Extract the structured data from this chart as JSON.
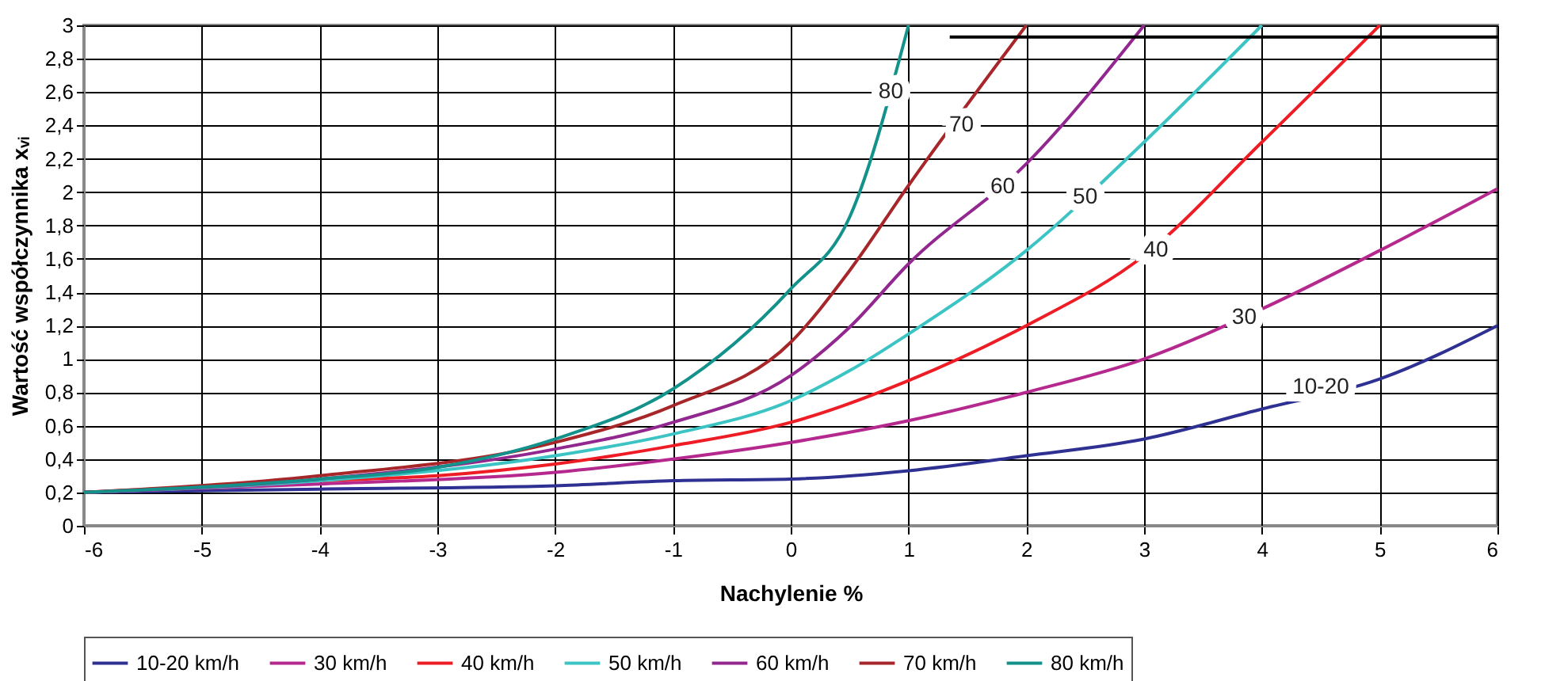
{
  "chart_data": {
    "type": "line",
    "xlabel": "Nachylenie %",
    "ylabel": "Wartość współczynnika xᵥᵢ",
    "xlim": [
      -6,
      6
    ],
    "xticks": [
      -6,
      -5,
      -4,
      -3,
      -2,
      -1,
      0,
      1,
      2,
      3,
      4,
      5,
      6
    ],
    "ylim": [
      0,
      3
    ],
    "yticks": [
      0,
      {
        "value": 0.2,
        "label": "0,2"
      },
      {
        "value": 0.4,
        "label": "0,4"
      },
      {
        "value": 0.6,
        "label": "0,6"
      },
      {
        "value": 0.8,
        "label": "0,8"
      },
      1,
      {
        "value": 1.2,
        "label": "1,2"
      },
      {
        "value": 1.4,
        "label": "1,4"
      },
      {
        "value": 1.6,
        "label": "1,6"
      },
      {
        "value": 1.8,
        "label": "1,8"
      },
      2,
      {
        "value": 2.2,
        "label": "2,2"
      },
      {
        "value": 2.4,
        "label": "2,4"
      },
      {
        "value": 2.6,
        "label": "2,6"
      },
      {
        "value": 2.8,
        "label": "2,8"
      },
      3
    ],
    "grid": true,
    "legend": "bottom",
    "marker": "none",
    "line_style": "solid",
    "series": [
      {
        "name": "10-20 km/h",
        "color": "#2e3192",
        "x": [
          -6,
          -4,
          -2,
          -1,
          0,
          1,
          2,
          3,
          4,
          5,
          6
        ],
        "values": [
          0.2,
          0.22,
          0.24,
          0.27,
          0.28,
          0.33,
          0.42,
          0.52,
          0.7,
          0.88,
          1.2
        ]
      },
      {
        "name": "30 km/h",
        "color": "#b5298f",
        "x": [
          -6,
          -4,
          -2,
          -1,
          0,
          1,
          2,
          3,
          4,
          5,
          6
        ],
        "values": [
          0.2,
          0.25,
          0.32,
          0.4,
          0.5,
          0.63,
          0.8,
          1.0,
          1.3,
          1.65,
          2.02
        ]
      },
      {
        "name": "40 km/h",
        "color": "#ee1c24",
        "x": [
          -6,
          -4,
          -3,
          -2,
          -1,
          0,
          1,
          2,
          3,
          4,
          5
        ],
        "values": [
          0.2,
          0.27,
          0.3,
          0.37,
          0.48,
          0.62,
          0.87,
          1.2,
          1.62,
          2.3,
          3.0
        ]
      },
      {
        "name": "50 km/h",
        "color": "#3cc4c4",
        "x": [
          -6,
          -4,
          -2,
          -1,
          0,
          0.5,
          1,
          2,
          3,
          4
        ],
        "values": [
          0.2,
          0.27,
          0.42,
          0.55,
          0.75,
          0.93,
          1.15,
          1.65,
          2.3,
          3.0
        ]
      },
      {
        "name": "60 km/h",
        "color": "#92278f",
        "x": [
          -6,
          -4,
          -2,
          -1,
          0,
          0.5,
          1,
          2,
          3
        ],
        "values": [
          0.2,
          0.28,
          0.46,
          0.62,
          0.9,
          1.19,
          1.57,
          2.17,
          3.0
        ]
      },
      {
        "name": "70 km/h",
        "color": "#a6262a",
        "x": [
          -6,
          -4,
          -2,
          -1,
          0,
          0.5,
          1,
          2
        ],
        "values": [
          0.2,
          0.3,
          0.5,
          0.72,
          1.1,
          1.53,
          2.04,
          3.0
        ]
      },
      {
        "name": "80 km/h",
        "color": "#12928a",
        "x": [
          -6,
          -4,
          -3,
          -2,
          -1,
          0,
          0.5,
          1
        ],
        "values": [
          0.2,
          0.28,
          0.35,
          0.52,
          0.82,
          1.42,
          1.85,
          3.0
        ]
      },
      {
        "color": "#000000",
        "x": [
          1.35,
          6
        ],
        "values": [
          2.93,
          2.93
        ]
      }
    ],
    "annotations": [
      {
        "text": "80",
        "x": 0.85,
        "y": 2.6
      },
      {
        "text": "70",
        "x": 1.45,
        "y": 2.4
      },
      {
        "text": "60",
        "x": 1.8,
        "y": 2.03
      },
      {
        "text": "50",
        "x": 2.5,
        "y": 1.97
      },
      {
        "text": "40",
        "x": 3.1,
        "y": 1.65
      },
      {
        "text": "30",
        "x": 3.85,
        "y": 1.25
      },
      {
        "text": "10-20",
        "x": 4.5,
        "y": 0.83
      }
    ]
  }
}
